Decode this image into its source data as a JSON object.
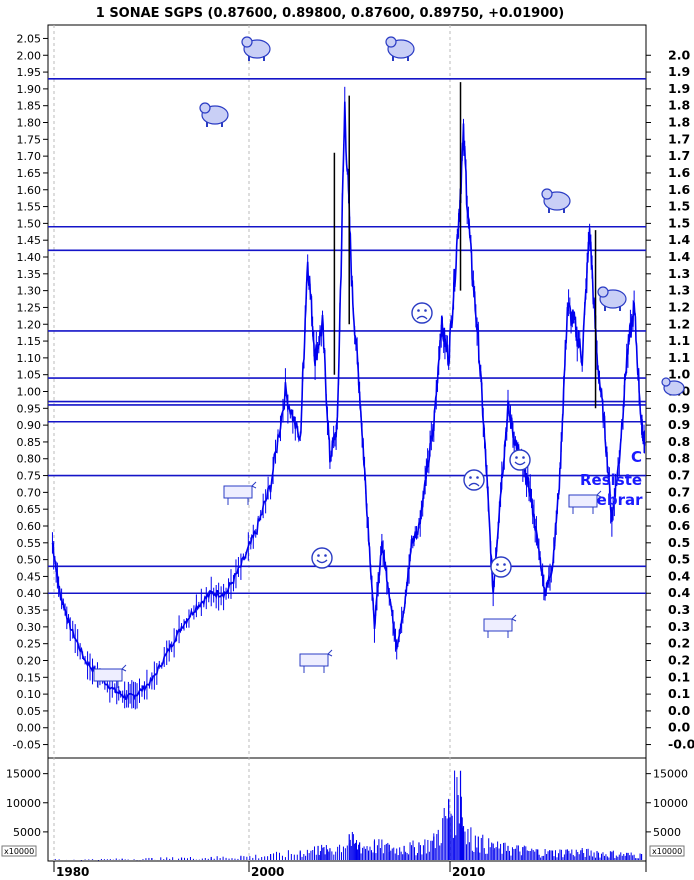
{
  "chart_data": {
    "type": "line",
    "title": "1 SONAE SGPS (0.87600, 0.89800, 0.87600, 0.89750, +0.01900)",
    "x_ticks": [
      "1980",
      "2000",
      "2010"
    ],
    "price_axis_left": {
      "ticks": [
        "2.05",
        "2.00",
        "1.95",
        "1.90",
        "1.85",
        "1.80",
        "1.75",
        "1.70",
        "1.65",
        "1.60",
        "1.55",
        "1.50",
        "1.45",
        "1.40",
        "1.35",
        "1.30",
        "1.25",
        "1.20",
        "1.15",
        "1.10",
        "1.05",
        "1.00",
        "0.95",
        "0.90",
        "0.85",
        "0.80",
        "0.75",
        "0.70",
        "0.65",
        "0.60",
        "0.55",
        "0.50",
        "0.45",
        "0.40",
        "0.35",
        "0.30",
        "0.25",
        "0.20",
        "0.15",
        "0.10",
        "0.05",
        "0.00",
        "-0.05"
      ],
      "ylim": [
        -0.09,
        2.09
      ]
    },
    "price_axis_right": {
      "ticks": [
        "2.0",
        "1.9",
        "1.9",
        "1.8",
        "1.8",
        "1.7",
        "1.7",
        "1.6",
        "1.6",
        "1.5",
        "1.5",
        "1.4",
        "1.4",
        "1.3",
        "1.3",
        "1.2",
        "1.2",
        "1.1",
        "1.1",
        "1.0",
        "1.0",
        "0.9",
        "0.9",
        "0.8",
        "0.8",
        "0.7",
        "0.7",
        "0.6",
        "0.6",
        "0.5",
        "0.5",
        "0.4",
        "0.4",
        "0.3",
        "0.3",
        "0.2",
        "0.2",
        "0.1",
        "0.1",
        "0.0",
        "0.0",
        "-0.0"
      ]
    },
    "volume_axis": {
      "ticks": [
        "15000",
        "10000",
        "5000"
      ],
      "multiplier_label": "x10000",
      "ylim": [
        0,
        17000
      ]
    },
    "horizontal_lines": [
      1.93,
      1.49,
      1.42,
      1.18,
      1.04,
      0.97,
      0.96,
      0.91,
      0.75,
      0.48,
      0.4
    ],
    "price_series": {
      "color": "#0000ee",
      "x": [
        1979.3,
        1979.8,
        1980.5,
        1981.5,
        1982.5,
        1983.5,
        1984.3,
        1985.0,
        1986.0,
        1987.0,
        1988.0,
        1989.0,
        1990.0,
        1991.0,
        1992.0,
        1993.0,
        1994.0,
        1995.0,
        1996.0,
        1996.5,
        1997.0,
        1997.5,
        1998.0,
        1998.5,
        1999.0,
        1999.5,
        2000.0,
        2000.5,
        2001.0,
        2001.5,
        2002.0,
        2002.5,
        2003.0,
        2003.5,
        2004.0,
        2004.5,
        2005.0,
        2005.5,
        2006.0,
        2006.5,
        2007.0,
        2007.5,
        2008.0,
        2008.5,
        2009.0,
        2009.5,
        2010.0,
        2010.5,
        2011.0,
        2011.5,
        2012.0,
        2012.5,
        2013.0,
        2013.5,
        2014.0,
        2014.5,
        2015.0,
        2015.5,
        2016.0,
        2016.5,
        2017.0,
        2017.5,
        2018.0,
        2018.5,
        2019.0,
        2019.2
      ],
      "y": [
        0.55,
        0.4,
        0.3,
        0.2,
        0.15,
        0.11,
        0.09,
        0.1,
        0.14,
        0.22,
        0.3,
        0.36,
        0.4,
        0.4,
        0.48,
        0.58,
        0.72,
        1.0,
        0.85,
        1.4,
        1.1,
        1.2,
        0.8,
        0.9,
        1.85,
        1.3,
        1.0,
        0.65,
        0.3,
        0.55,
        0.4,
        0.24,
        0.35,
        0.55,
        0.6,
        0.75,
        0.9,
        1.2,
        1.1,
        1.4,
        1.75,
        1.4,
        1.15,
        0.8,
        0.4,
        0.7,
        0.95,
        0.85,
        0.78,
        0.7,
        0.55,
        0.4,
        0.48,
        0.75,
        1.25,
        1.2,
        1.1,
        1.48,
        1.1,
        0.9,
        0.62,
        0.8,
        1.1,
        1.25,
        0.9,
        0.85
      ]
    },
    "peak_spikes": [
      {
        "x": 1998.3,
        "low": 1.05,
        "high": 1.71
      },
      {
        "x": 1999.3,
        "low": 1.2,
        "high": 1.88
      },
      {
        "x": 2006.8,
        "low": 1.3,
        "high": 1.92
      },
      {
        "x": 2015.9,
        "low": 0.95,
        "high": 1.48
      }
    ],
    "volume_series": {
      "color": "#0000ee",
      "x": [
        1979.5,
        1982,
        1984,
        1986,
        1988,
        1990,
        1992,
        1994,
        1996,
        1997.2,
        1998,
        1999.3,
        2000,
        2001,
        2002,
        2003,
        2004,
        2005,
        2006,
        2006.8,
        2007,
        2008,
        2009,
        2010,
        2011,
        2012,
        2013,
        2014,
        2015,
        2016,
        2017,
        2018,
        2019
      ],
      "values": [
        300,
        300,
        400,
        500,
        600,
        700,
        900,
        1200,
        1800,
        2600,
        2200,
        4600,
        3200,
        3400,
        2800,
        2600,
        3200,
        4200,
        10500,
        15500,
        6000,
        4200,
        3000,
        2600,
        2400,
        2000,
        1800,
        2000,
        1900,
        1700,
        1600,
        1400,
        1200
      ]
    },
    "annotations": [
      "Resiste",
      "uebrar",
      "C"
    ]
  }
}
